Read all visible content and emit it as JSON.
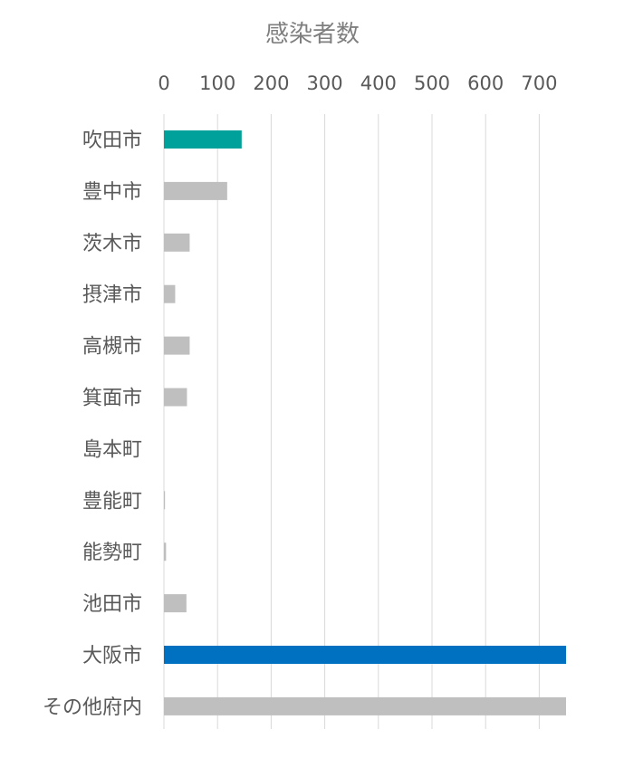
{
  "chart_data": {
    "type": "bar",
    "orientation": "horizontal",
    "title": "感染者数",
    "xlabel": "",
    "ylabel": "",
    "xlim": [
      0,
      750
    ],
    "x_ticks": [
      0,
      100,
      200,
      300,
      400,
      500,
      600,
      700
    ],
    "x_axis_position": "top",
    "grid": true,
    "legend": "none",
    "categories": [
      "吹田市",
      "豊中市",
      "茨木市",
      "摂津市",
      "高槻市",
      "箕面市",
      "島本町",
      "豊能町",
      "能勢町",
      "池田市",
      "大阪市",
      "その他府内"
    ],
    "values": [
      145,
      118,
      48,
      21,
      48,
      43,
      0,
      2,
      4,
      42,
      750,
      750
    ],
    "colors": [
      "#00a19a",
      "#bfbfbf",
      "#bfbfbf",
      "#bfbfbf",
      "#bfbfbf",
      "#bfbfbf",
      "#bfbfbf",
      "#bfbfbf",
      "#bfbfbf",
      "#bfbfbf",
      "#0070c0",
      "#bfbfbf"
    ]
  }
}
